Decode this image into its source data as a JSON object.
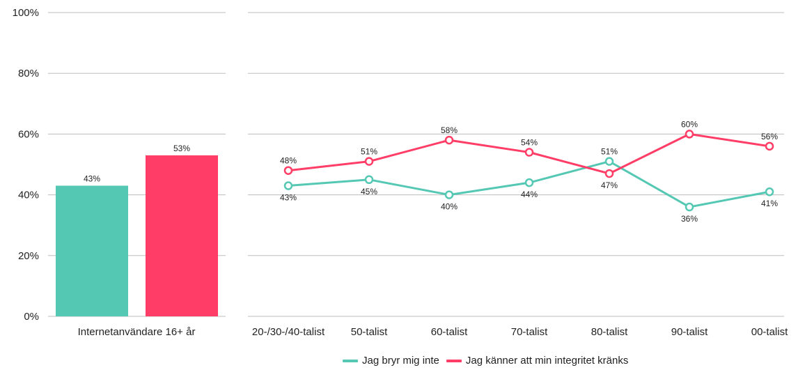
{
  "chart_data": [
    {
      "type": "bar",
      "categories": [
        "Internetanvändare 16+ år"
      ],
      "series": [
        {
          "name": "Jag bryr mig inte",
          "values": [
            43
          ],
          "color": "#55C8B4"
        },
        {
          "name": "Jag känner att min integritet kränks",
          "values": [
            53
          ],
          "color": "#FF3D66"
        }
      ],
      "data_labels": [
        "43%",
        "53%"
      ],
      "ylim": [
        0,
        100
      ],
      "yticks": [
        "0%",
        "20%",
        "40%",
        "60%",
        "80%",
        "100%"
      ],
      "grid": true
    },
    {
      "type": "line",
      "categories": [
        "20-/30-/40-talist",
        "50-talist",
        "60-talist",
        "70-talist",
        "80-talist",
        "90-talist",
        "00-talist"
      ],
      "series": [
        {
          "name": "Jag bryr mig inte",
          "values": [
            43,
            45,
            40,
            44,
            51,
            36,
            41
          ],
          "labels": [
            "43%",
            "45%",
            "40%",
            "44%",
            "51%",
            "36%",
            "41%"
          ],
          "color": "#55C8B4"
        },
        {
          "name": "Jag känner att min integritet kränks",
          "values": [
            48,
            51,
            58,
            54,
            47,
            60,
            56
          ],
          "labels": [
            "48%",
            "51%",
            "58%",
            "54%",
            "47%",
            "60%",
            "56%"
          ],
          "color": "#FF3D66"
        }
      ],
      "ylim": [
        0,
        100
      ],
      "grid": true
    }
  ],
  "legend": {
    "items": [
      {
        "label": "Jag bryr mig inte",
        "color": "#55C8B4"
      },
      {
        "label": "Jag känner att min integritet kränks",
        "color": "#FF3D66"
      }
    ],
    "placement": "bottom-right"
  }
}
